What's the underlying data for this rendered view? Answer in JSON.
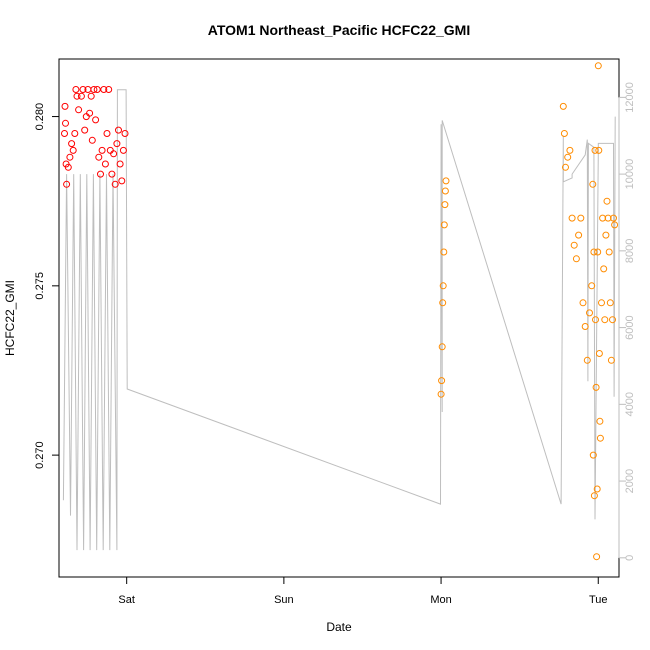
{
  "chart_data": {
    "type": "scatter",
    "title": "ATOM1 Northeast_Pacific HCFC22_GMI",
    "xlabel": "Date",
    "ylabel": "HCFC22_GMI",
    "x_ticks": [
      "Sat",
      "Sun",
      "Mon",
      "Tue"
    ],
    "xlim": [
      "Fri 13:40",
      "Tue 03:10"
    ],
    "ylim": [
      0.2664,
      0.2817
    ],
    "y_ticks": [
      0.27,
      0.275,
      0.28
    ],
    "y2_label": "",
    "y2_ticks": [
      0,
      2000,
      4000,
      6000,
      8000,
      10000,
      12000
    ],
    "y2lim": [
      -500,
      13000
    ],
    "colors": {
      "series_red": "#ff0000",
      "series_orange": "#ff8c00",
      "altitude_line": "#bebebe",
      "axis": "#000000",
      "right_axis": "#bebebe"
    },
    "series": [
      {
        "color": "red",
        "points": [
          [
            "Fri 14:30",
            0.2795
          ],
          [
            "Fri 14:35",
            0.2803
          ],
          [
            "Fri 14:40",
            0.2798
          ],
          [
            "Fri 14:45",
            0.2786
          ],
          [
            "Fri 14:50",
            0.278
          ],
          [
            "Fri 15:05",
            0.2785
          ],
          [
            "Fri 15:20",
            0.2788
          ],
          [
            "Fri 15:35",
            0.2792
          ],
          [
            "Fri 15:50",
            0.279
          ],
          [
            "Fri 16:05",
            0.2795
          ],
          [
            "Fri 16:15",
            0.2808
          ],
          [
            "Fri 16:25",
            0.2806
          ],
          [
            "Fri 16:40",
            0.2802
          ],
          [
            "Fri 17:05",
            0.2806
          ],
          [
            "Fri 17:20",
            0.2808
          ],
          [
            "Fri 17:35",
            0.2796
          ],
          [
            "Fri 17:50",
            0.28
          ],
          [
            "Fri 18:05",
            0.2808
          ],
          [
            "Fri 18:20",
            0.2801
          ],
          [
            "Fri 18:35",
            0.2806
          ],
          [
            "Fri 18:45",
            0.2793
          ],
          [
            "Fri 19:00",
            0.2808
          ],
          [
            "Fri 19:15",
            0.2799
          ],
          [
            "Fri 19:30",
            0.2808
          ],
          [
            "Fri 19:45",
            0.2788
          ],
          [
            "Fri 20:00",
            0.2783
          ],
          [
            "Fri 20:15",
            0.279
          ],
          [
            "Fri 20:30",
            0.2808
          ],
          [
            "Fri 20:45",
            0.2786
          ],
          [
            "Fri 21:00",
            0.2795
          ],
          [
            "Fri 21:15",
            0.2808
          ],
          [
            "Fri 21:30",
            0.279
          ],
          [
            "Fri 21:45",
            0.2783
          ],
          [
            "Fri 22:00",
            0.2789
          ],
          [
            "Fri 22:15",
            0.278
          ],
          [
            "Fri 22:30",
            0.2792
          ],
          [
            "Fri 22:45",
            0.2796
          ],
          [
            "Fri 23:00",
            0.2786
          ],
          [
            "Fri 23:15",
            0.2781
          ],
          [
            "Fri 23:30",
            0.279
          ],
          [
            "Fri 23:45",
            0.2795
          ]
        ]
      },
      {
        "color": "orange",
        "points": [
          [
            "Mon 00:00",
            0.2718
          ],
          [
            "Mon 00:05",
            0.2722
          ],
          [
            "Mon 00:10",
            0.2732
          ],
          [
            "Mon 00:15",
            0.2745
          ],
          [
            "Mon 00:20",
            0.275
          ],
          [
            "Mon 00:25",
            0.276
          ],
          [
            "Mon 00:30",
            0.2768
          ],
          [
            "Mon 00:35",
            0.2774
          ],
          [
            "Mon 00:40",
            0.2778
          ],
          [
            "Mon 00:45",
            0.2781
          ],
          [
            "Mon 18:40",
            0.2803
          ],
          [
            "Mon 18:50",
            0.2795
          ],
          [
            "Mon 19:00",
            0.2785
          ],
          [
            "Mon 19:20",
            0.2788
          ],
          [
            "Mon 19:40",
            0.279
          ],
          [
            "Mon 20:00",
            0.277
          ],
          [
            "Mon 20:20",
            0.2762
          ],
          [
            "Mon 20:40",
            0.2758
          ],
          [
            "Mon 21:00",
            0.2765
          ],
          [
            "Mon 21:20",
            0.277
          ],
          [
            "Mon 21:40",
            0.2745
          ],
          [
            "Mon 22:00",
            0.2738
          ],
          [
            "Mon 22:20",
            0.2728
          ],
          [
            "Mon 22:40",
            0.2742
          ],
          [
            "Mon 23:00",
            0.275
          ],
          [
            "Mon 23:10",
            0.278
          ],
          [
            "Mon 23:15",
            0.27
          ],
          [
            "Mon 23:20",
            0.276
          ],
          [
            "Mon 23:25",
            0.2688
          ],
          [
            "Mon 23:30",
            0.279
          ],
          [
            "Mon 23:35",
            0.274
          ],
          [
            "Mon 23:40",
            0.272
          ],
          [
            "Mon 23:45",
            0.267
          ],
          [
            "Mon 23:50",
            0.269
          ],
          [
            "Mon 23:55",
            0.276
          ],
          [
            "Tue 00:00",
            0.2815
          ],
          [
            "Tue 00:05",
            0.279
          ],
          [
            "Tue 00:10",
            0.273
          ],
          [
            "Tue 00:15",
            0.271
          ],
          [
            "Tue 00:20",
            0.2705
          ],
          [
            "Tue 00:30",
            0.2745
          ],
          [
            "Tue 00:40",
            0.277
          ],
          [
            "Tue 00:50",
            0.2755
          ],
          [
            "Tue 01:00",
            0.274
          ],
          [
            "Tue 01:10",
            0.2765
          ],
          [
            "Tue 01:20",
            0.2775
          ],
          [
            "Tue 01:30",
            0.277
          ],
          [
            "Tue 01:40",
            0.276
          ],
          [
            "Tue 01:50",
            0.2745
          ],
          [
            "Tue 02:00",
            0.2728
          ],
          [
            "Tue 02:10",
            0.274
          ],
          [
            "Tue 02:20",
            0.277
          ],
          [
            "Tue 02:30",
            0.2768
          ]
        ]
      }
    ],
    "altitude_line": [
      [
        "Fri 14:20",
        1500
      ],
      [
        "Fri 14:50",
        10000
      ],
      [
        "Fri 15:25",
        1100
      ],
      [
        "Fri 15:55",
        10000
      ],
      [
        "Fri 16:25",
        200
      ],
      [
        "Fri 16:55",
        10000
      ],
      [
        "Fri 17:25",
        200
      ],
      [
        "Fri 17:55",
        10000
      ],
      [
        "Fri 18:25",
        200
      ],
      [
        "Fri 18:55",
        10000
      ],
      [
        "Fri 19:25",
        200
      ],
      [
        "Fri 19:55",
        10000
      ],
      [
        "Fri 20:25",
        200
      ],
      [
        "Fri 20:55",
        10000
      ],
      [
        "Fri 21:25",
        200
      ],
      [
        "Fri 21:55",
        10000
      ],
      [
        "Fri 22:30",
        200
      ],
      [
        "Fri 22:35",
        12200
      ],
      [
        "Fri 23:55",
        12200
      ],
      [
        "Sat 00:05",
        4400
      ],
      [
        "Sun 23:55",
        1400
      ],
      [
        "Mon 00:00",
        11300
      ],
      [
        "Mon 00:10",
        3800
      ],
      [
        "Mon 00:10",
        11400
      ],
      [
        "Mon 18:20",
        1400
      ],
      [
        "Mon 18:40",
        11000
      ],
      [
        "Mon 18:40",
        9800
      ],
      [
        "Mon 20:00",
        9900
      ],
      [
        "Mon 20:00",
        10000
      ],
      [
        "Mon 22:00",
        10500
      ],
      [
        "Mon 22:20",
        10900
      ],
      [
        "Mon 22:25",
        4600
      ],
      [
        "Mon 22:30",
        10800
      ],
      [
        "Mon 23:20",
        10700
      ],
      [
        "Mon 23:30",
        1000
      ],
      [
        "Tue 00:00",
        10600
      ],
      [
        "Tue 00:00",
        10800
      ],
      [
        "Tue 02:20",
        10800
      ],
      [
        "Tue 02:25",
        4200
      ],
      [
        "Tue 02:35",
        11500
      ]
    ]
  }
}
